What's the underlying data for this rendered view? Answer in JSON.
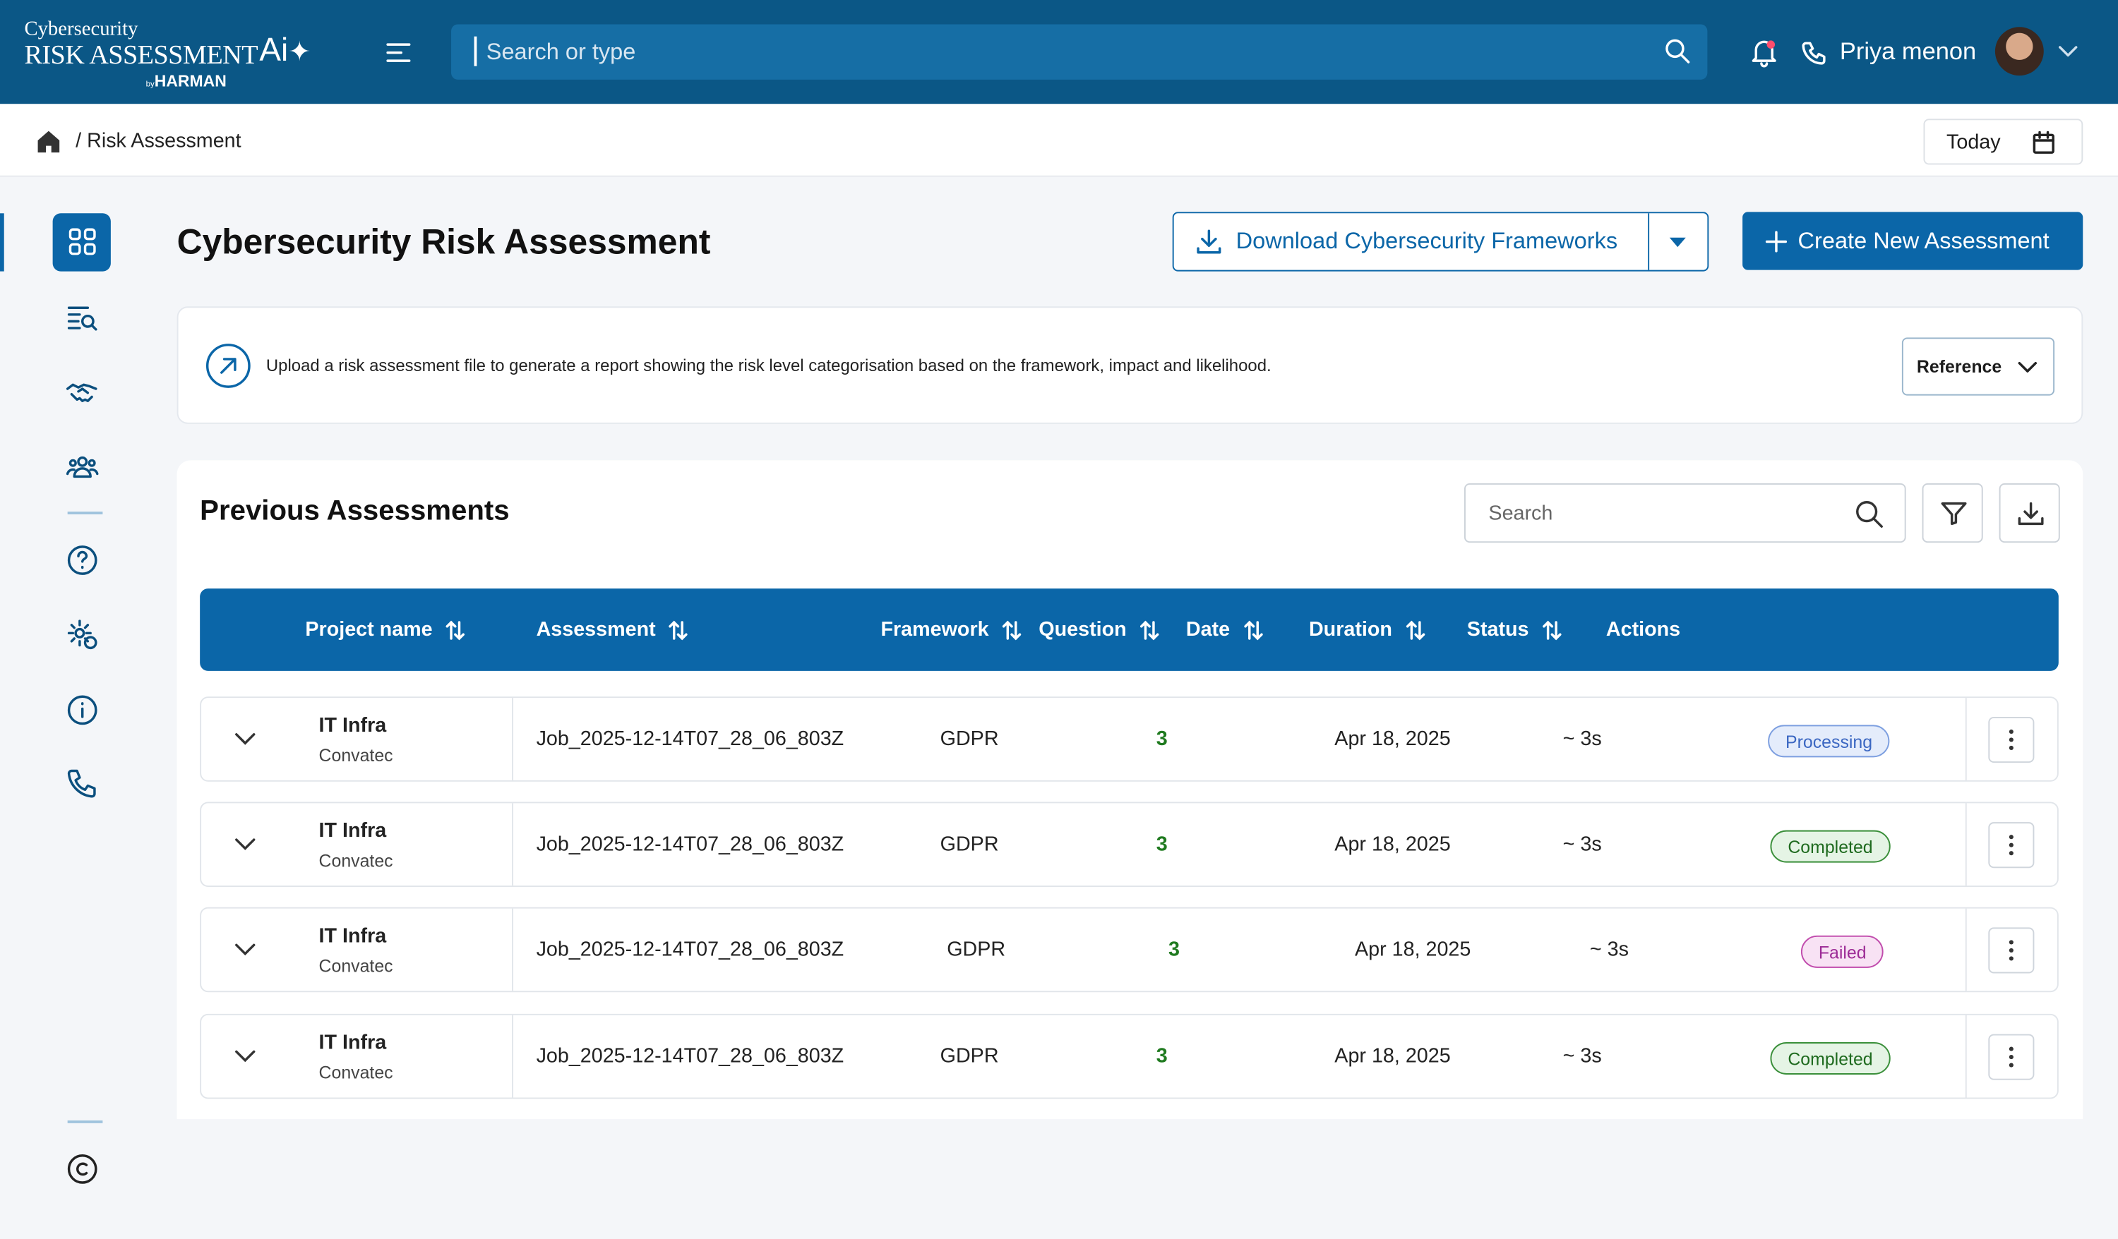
{
  "header": {
    "brand_line1": "Cybersecurity",
    "brand_line2": "RISK ASSESSMENT",
    "brand_ai": "Ai",
    "brand_by": "by",
    "brand_company": "HARMAN",
    "search_placeholder": "Search or type",
    "user_name": "Priya menon"
  },
  "breadcrumb": {
    "current": "Risk Assessment",
    "date_button": "Today"
  },
  "page": {
    "title": "Cybersecurity Risk Assessment",
    "download_button": "Download Cybersecurity Frameworks",
    "create_button": "Create New Assessment",
    "info_text": "Upload a risk assessment file to generate a report showing the risk level categorisation based on the framework, impact and likelihood.",
    "reference_select": "Reference"
  },
  "assessments": {
    "title": "Previous Assessments",
    "search_placeholder": "Search",
    "columns": [
      "Project name",
      "Assessment",
      "Framework",
      "Question",
      "Date",
      "Duration",
      "Status",
      "Actions"
    ],
    "rows": [
      [
        "IT Infra",
        "Convatec",
        "Job_2025-12-14T07_28_06_803Z",
        "GDPR",
        3,
        "Apr 18, 2025",
        "~ 3s",
        "Processing"
      ],
      [
        "IT Infra",
        "Convatec",
        "Job_2025-12-14T07_28_06_803Z",
        "GDPR",
        3,
        "Apr 18, 2025",
        "~ 3s",
        "Completed"
      ],
      [
        "IT Infra",
        "Convatec",
        "Job_2025-12-14T07_28_06_803Z",
        "GDPR",
        3,
        "Apr 18, 2025",
        "~ 3s",
        "Failed"
      ],
      [
        "IT Infra",
        "Convatec",
        "Job_2025-12-14T07_28_06_803Z",
        "GDPR",
        3,
        "Apr 18, 2025",
        "~ 3s",
        "Completed"
      ]
    ]
  }
}
